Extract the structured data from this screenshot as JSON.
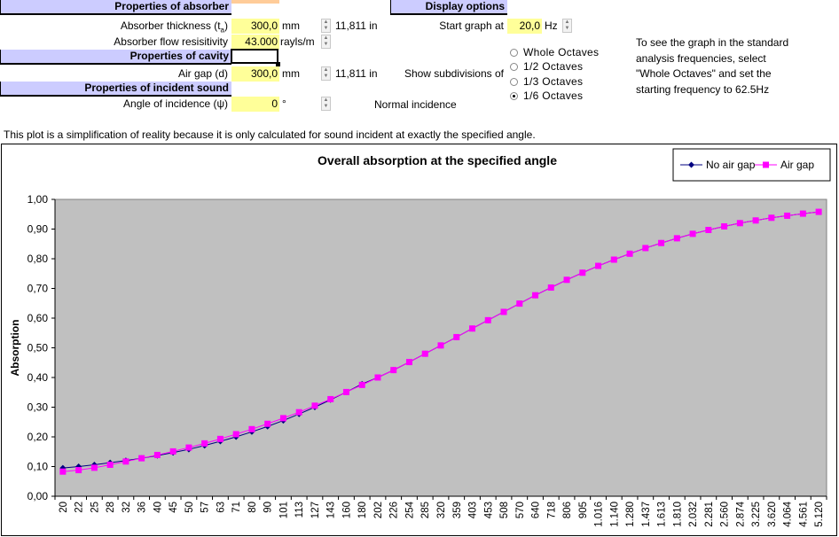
{
  "absorber": {
    "header": "Properties of absorber",
    "thickness_label": "Absorber thickness (t",
    "thickness_sub": "a",
    "thickness_close": ")",
    "thickness_value": "300,0",
    "thickness_unit": "mm",
    "thickness_inches": "11,811",
    "thickness_inch_unit": "in",
    "flow_label": "Absorber flow resisitivity",
    "flow_value": "43.000",
    "flow_unit": "rayls/m"
  },
  "cavity": {
    "header": "Properties of cavity",
    "airgap_label": "Air gap (d)",
    "airgap_value": "300,0",
    "airgap_unit": "mm",
    "airgap_inches": "11,811",
    "airgap_inch_unit": "in"
  },
  "incident": {
    "header": "Properties of incident sound",
    "angle_label": "Angle of incidence (ψ)",
    "angle_value": "0",
    "angle_unit": "°",
    "angle_note": "Normal incidence"
  },
  "display": {
    "header": "Display options",
    "start_label": "Start graph at",
    "start_value": "20,0",
    "start_unit": "Hz",
    "subdiv_label": "Show subdivisions of",
    "options": [
      "Whole Octaves",
      "1/2 Octaves",
      "1/3 Octaves",
      "1/6 Octaves"
    ],
    "selected_index": 3,
    "hint_lines": [
      "To see the graph in the standard",
      "analysis frequencies, select",
      "\"Whole Octaves\" and set the",
      "starting frequency to 62.5Hz"
    ]
  },
  "disclaimer": "This plot is a simplification of reality because it is only calculated for sound incident at exactly the specified angle.",
  "colors": {
    "header_bg": "#ccccff",
    "input_bg": "#ffff99",
    "plot_bg": "#c0c0c0",
    "series_no_air": "#000080",
    "series_air": "#ff00ff"
  },
  "chart_data": {
    "type": "line",
    "title": "Overall absorption at the specified angle",
    "ylabel": "Absorption",
    "xlabel": "",
    "ylim": [
      0,
      1
    ],
    "y_ticks": [
      "0,00",
      "0,10",
      "0,20",
      "0,30",
      "0,40",
      "0,50",
      "0,60",
      "0,70",
      "0,80",
      "0,90",
      "1,00"
    ],
    "categories": [
      "20",
      "22",
      "25",
      "28",
      "32",
      "36",
      "40",
      "45",
      "50",
      "57",
      "63",
      "71",
      "80",
      "90",
      "101",
      "113",
      "127",
      "143",
      "160",
      "180",
      "202",
      "226",
      "254",
      "285",
      "320",
      "359",
      "403",
      "453",
      "508",
      "570",
      "640",
      "718",
      "806",
      "905",
      "1.016",
      "1.140",
      "1.280",
      "1.437",
      "1.613",
      "1.810",
      "2.032",
      "2.281",
      "2.560",
      "2.874",
      "3.225",
      "3.620",
      "4.064",
      "4.561",
      "5.120"
    ],
    "legend_position": "top-right",
    "series": [
      {
        "name": "No air gap",
        "color": "#000080",
        "marker": "diamond",
        "values": [
          0.095,
          0.1,
          0.106,
          0.113,
          0.12,
          0.128,
          0.137,
          0.147,
          0.158,
          0.171,
          0.185,
          0.2,
          0.217,
          0.235,
          0.255,
          0.277,
          0.3,
          0.325,
          0.351,
          0.378,
          0.4,
          0.425,
          0.452,
          0.48,
          0.508,
          0.536,
          0.565,
          0.593,
          0.621,
          0.649,
          0.677,
          0.703,
          0.729,
          0.753,
          0.776,
          0.797,
          0.817,
          0.836,
          0.853,
          0.869,
          0.884,
          0.897,
          0.909,
          0.92,
          0.929,
          0.938,
          0.945,
          0.952,
          0.958
        ]
      },
      {
        "name": "Air gap",
        "color": "#ff00ff",
        "marker": "square",
        "values": [
          0.083,
          0.088,
          0.096,
          0.106,
          0.117,
          0.128,
          0.139,
          0.151,
          0.164,
          0.178,
          0.193,
          0.209,
          0.226,
          0.244,
          0.263,
          0.283,
          0.305,
          0.327,
          0.351,
          0.375,
          0.4,
          0.425,
          0.452,
          0.48,
          0.508,
          0.536,
          0.565,
          0.593,
          0.621,
          0.649,
          0.677,
          0.703,
          0.729,
          0.753,
          0.776,
          0.797,
          0.817,
          0.836,
          0.853,
          0.869,
          0.884,
          0.897,
          0.909,
          0.92,
          0.929,
          0.938,
          0.945,
          0.952,
          0.958
        ]
      }
    ]
  }
}
